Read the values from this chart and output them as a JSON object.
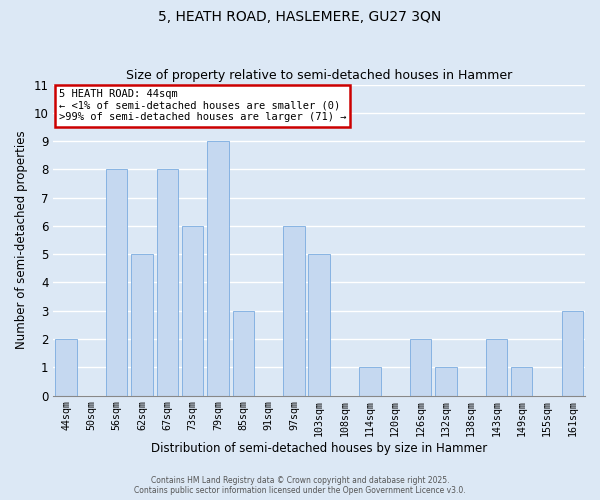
{
  "title": "5, HEATH ROAD, HASLEMERE, GU27 3QN",
  "subtitle": "Size of property relative to semi-detached houses in Hammer",
  "xlabel": "Distribution of semi-detached houses by size in Hammer",
  "ylabel": "Number of semi-detached properties",
  "categories": [
    "44sqm",
    "50sqm",
    "56sqm",
    "62sqm",
    "67sqm",
    "73sqm",
    "79sqm",
    "85sqm",
    "91sqm",
    "97sqm",
    "103sqm",
    "108sqm",
    "114sqm",
    "120sqm",
    "126sqm",
    "132sqm",
    "138sqm",
    "143sqm",
    "149sqm",
    "155sqm",
    "161sqm"
  ],
  "values": [
    2,
    0,
    8,
    5,
    8,
    6,
    9,
    3,
    0,
    6,
    5,
    0,
    1,
    0,
    2,
    1,
    0,
    2,
    1,
    0,
    3
  ],
  "bar_color": "#c5d8f0",
  "bar_edge_color": "#7aabe0",
  "ylim": [
    0,
    11
  ],
  "yticks": [
    0,
    1,
    2,
    3,
    4,
    5,
    6,
    7,
    8,
    9,
    10,
    11
  ],
  "annotation_title": "5 HEATH ROAD: 44sqm",
  "annotation_line1": "← <1% of semi-detached houses are smaller (0)",
  "annotation_line2": ">99% of semi-detached houses are larger (71) →",
  "annotation_box_color": "#ffffff",
  "annotation_border_color": "#cc0000",
  "bg_color": "#dce8f5",
  "grid_color": "#ffffff",
  "footer1": "Contains HM Land Registry data © Crown copyright and database right 2025.",
  "footer2": "Contains public sector information licensed under the Open Government Licence v3.0."
}
